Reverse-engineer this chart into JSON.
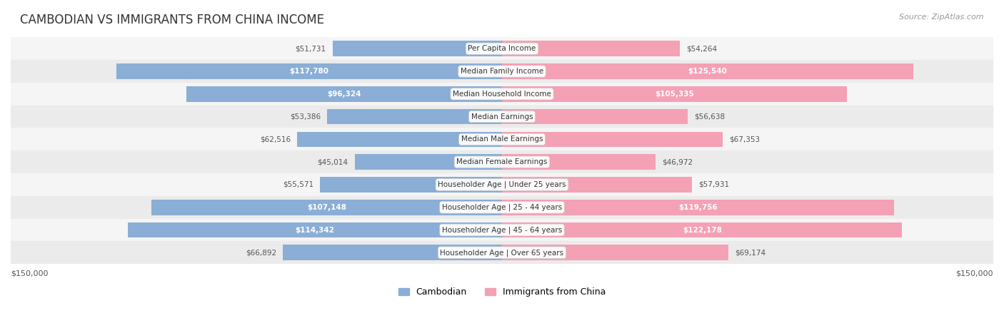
{
  "title": "CAMBODIAN VS IMMIGRANTS FROM CHINA INCOME",
  "source": "Source: ZipAtlas.com",
  "max_value": 150000,
  "categories": [
    "Per Capita Income",
    "Median Family Income",
    "Median Household Income",
    "Median Earnings",
    "Median Male Earnings",
    "Median Female Earnings",
    "Householder Age | Under 25 years",
    "Householder Age | 25 - 44 years",
    "Householder Age | 45 - 64 years",
    "Householder Age | Over 65 years"
  ],
  "cambodian_values": [
    51731,
    117780,
    96324,
    53386,
    62516,
    45014,
    55571,
    107148,
    114342,
    66892
  ],
  "china_values": [
    54264,
    125540,
    105335,
    56638,
    67353,
    46972,
    57931,
    119756,
    122178,
    69174
  ],
  "cambodian_color": "#8aaed6",
  "china_color": "#f4a0b5",
  "cambodian_label_color_bright": "#7099c8",
  "china_label_color_bright": "#ef7fa0",
  "label_bg_color": "#f0f0f0",
  "row_bg_color": "#f5f5f5",
  "row_bg_color_alt": "#ebebeb",
  "bar_label_threshold": 80000,
  "legend_cambodian": "Cambodian",
  "legend_china": "Immigrants from China",
  "xlabel_left": "$150,000",
  "xlabel_right": "$150,000"
}
